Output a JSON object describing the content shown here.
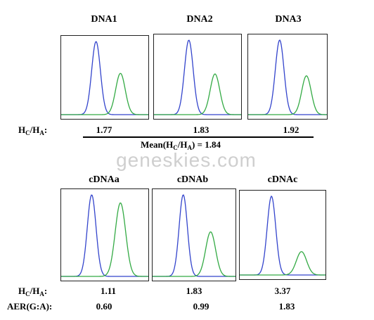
{
  "chart_data": [
    {
      "type": "line",
      "title": "DNA1",
      "series": [
        {
          "color": "#3344cc",
          "peak_height": 1.0
        },
        {
          "color": "#33aa44",
          "peak_height": 0.565
        }
      ],
      "ratio_label": "1.77"
    },
    {
      "type": "line",
      "title": "DNA2",
      "series": [
        {
          "color": "#3344cc",
          "peak_height": 1.0
        },
        {
          "color": "#33aa44",
          "peak_height": 0.546
        }
      ],
      "ratio_label": "1.83"
    },
    {
      "type": "line",
      "title": "DNA3",
      "series": [
        {
          "color": "#3344cc",
          "peak_height": 1.0
        },
        {
          "color": "#33aa44",
          "peak_height": 0.521
        }
      ],
      "ratio_label": "1.92"
    },
    {
      "type": "line",
      "title": "cDNAa",
      "series": [
        {
          "color": "#3344cc",
          "peak_height": 1.0
        },
        {
          "color": "#33aa44",
          "peak_height": 0.901
        }
      ],
      "ratio_label": "1.11",
      "aer_label": "0.60"
    },
    {
      "type": "line",
      "title": "cDNAb",
      "series": [
        {
          "color": "#3344cc",
          "peak_height": 1.0
        },
        {
          "color": "#33aa44",
          "peak_height": 0.546
        }
      ],
      "ratio_label": "1.83",
      "aer_label": "0.99"
    },
    {
      "type": "line",
      "title": "cDNAc",
      "series": [
        {
          "color": "#3344cc",
          "peak_height": 1.0
        },
        {
          "color": "#33aa44",
          "peak_height": 0.297
        }
      ],
      "ratio_label": "3.37",
      "aer_label": "1.83"
    }
  ],
  "labels": {
    "ratio_prefix": "H",
    "ratio_sub_c": "C",
    "ratio_slash": "/H",
    "ratio_sub_a": "A",
    "ratio_colon": ":",
    "mean_prefix": "Mean(H",
    "mean_slash": "/H",
    "mean_suffix": ") = 1.84",
    "aer": "AER(G:A):"
  },
  "watermark": "geneskies.com"
}
